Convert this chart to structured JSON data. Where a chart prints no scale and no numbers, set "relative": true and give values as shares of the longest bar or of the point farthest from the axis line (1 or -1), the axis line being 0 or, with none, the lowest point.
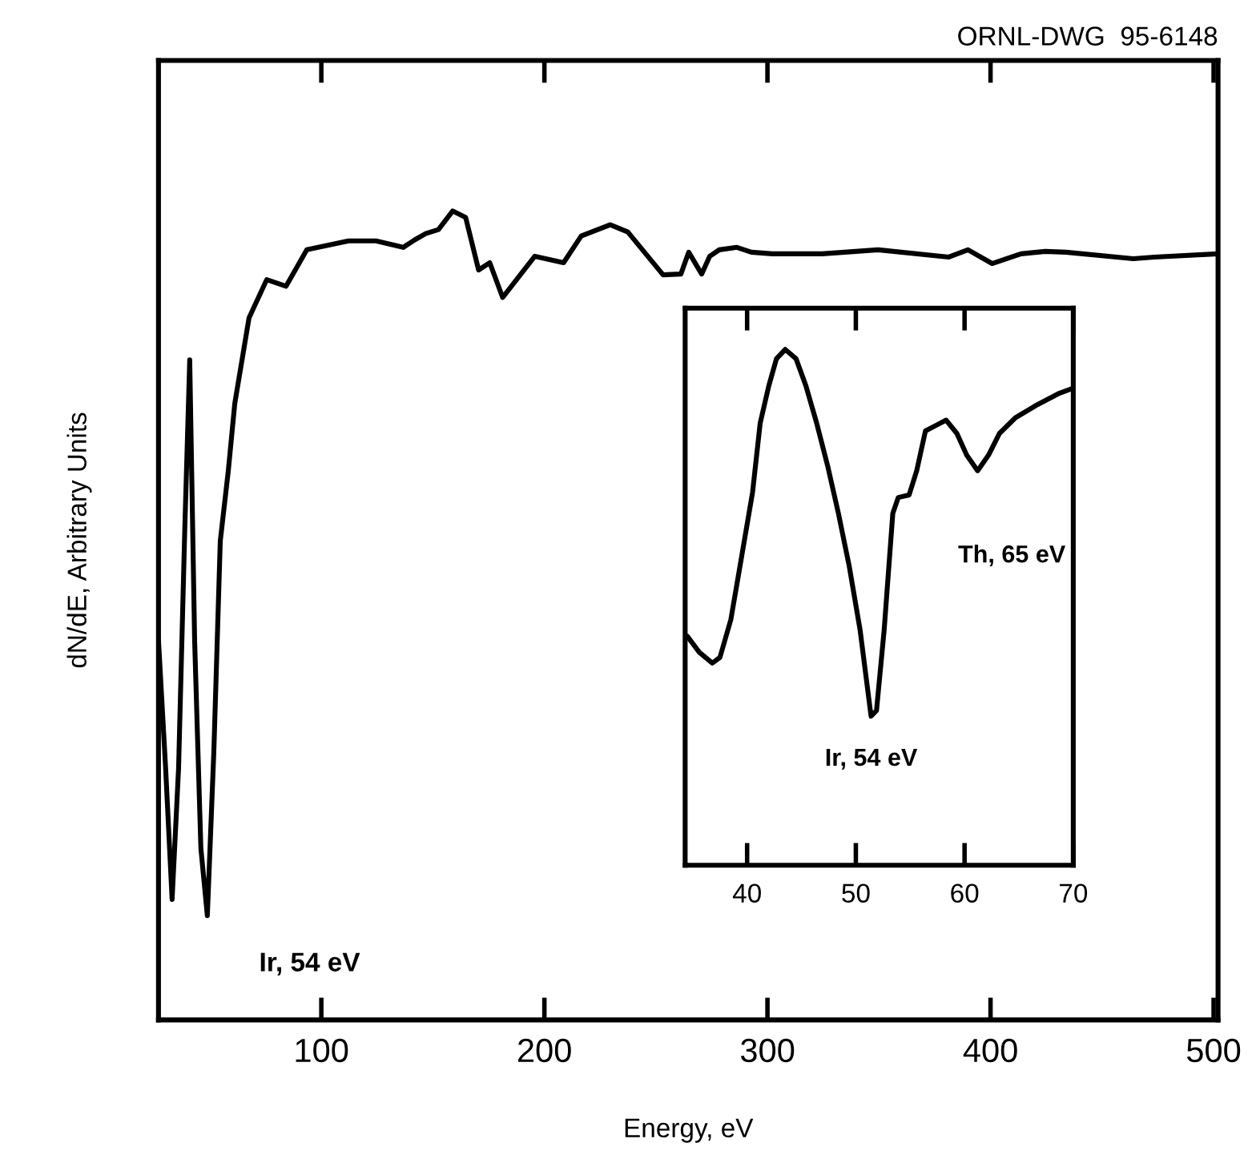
{
  "chart_data": [
    {
      "type": "line",
      "xlabel": "Energy, eV",
      "ylabel": "dN/dE, Arbitrary Units",
      "relative": true,
      "xlim": [
        27,
        502
      ],
      "xticks": [
        100,
        200,
        300,
        400,
        500
      ],
      "tick_labels": "x",
      "grid": false,
      "legend": false,
      "annotations": [
        "ORNL-DWG  95-6148",
        "Ir, 54 eV"
      ],
      "series": [
        {
          "color": "#000000",
          "x": [
            27.0,
            30.2,
            33.1,
            36.0,
            38.8,
            41.0,
            43.2,
            46.0,
            48.9,
            51.8,
            54.7,
            58.3,
            61.2,
            67.6,
            75.5,
            84.2,
            93.5,
            112.2,
            124.5,
            136.7,
            141.7,
            146.8,
            152.5,
            158.9,
            164.7,
            170.5,
            175.5,
            181.3,
            195.7,
            208.6,
            216.5,
            229.5,
            237.4,
            253.2,
            261.2,
            264.7,
            270.5,
            274.1,
            278.4,
            286.3,
            292.8,
            302.2,
            324.5,
            349.6,
            381.3,
            389.9,
            400.7,
            413.7,
            424.5,
            433.8,
            464.0,
            473.4,
            502.0
          ],
          "values": [
            0.469,
            0.311,
            0.149,
            0.311,
            0.608,
            0.816,
            0.469,
            0.212,
            0.129,
            0.331,
            0.592,
            0.679,
            0.762,
            0.868,
            0.915,
            0.907,
            0.952,
            0.963,
            0.963,
            0.955,
            0.964,
            0.972,
            0.977,
            1.0,
            0.992,
            0.927,
            0.936,
            0.893,
            0.944,
            0.936,
            0.969,
            0.983,
            0.974,
            0.921,
            0.922,
            0.949,
            0.922,
            0.944,
            0.952,
            0.955,
            0.949,
            0.947,
            0.947,
            0.952,
            0.943,
            0.952,
            0.935,
            0.947,
            0.95,
            0.949,
            0.941,
            0.943,
            0.947
          ]
        }
      ]
    },
    {
      "type": "line",
      "xlim": [
        34.3,
        70
      ],
      "xticks": [
        40,
        50,
        60,
        70
      ],
      "relative": true,
      "tick_labels": "x",
      "grid": false,
      "legend": false,
      "annotations": [
        "Th, 65 eV",
        "Ir, 54 eV"
      ],
      "series": [
        {
          "color": "#000000",
          "x": [
            34.5,
            35.6,
            36.8,
            37.5,
            38.5,
            39.5,
            40.5,
            41.2,
            42.0,
            42.7,
            43.5,
            44.5,
            45.4,
            46.4,
            47.4,
            48.4,
            49.4,
            50.4,
            51.4,
            51.9,
            52.6,
            53.4,
            53.9,
            54.9,
            55.6,
            56.4,
            57.3,
            58.3,
            59.3,
            60.2,
            61.2,
            62.2,
            63.2,
            64.7,
            66.7,
            68.6,
            70.0
          ],
          "values": [
            0.444,
            0.413,
            0.392,
            0.403,
            0.476,
            0.599,
            0.723,
            0.857,
            0.93,
            0.982,
            1.0,
            0.982,
            0.93,
            0.857,
            0.775,
            0.682,
            0.579,
            0.455,
            0.289,
            0.3,
            0.455,
            0.682,
            0.713,
            0.718,
            0.765,
            0.842,
            0.852,
            0.863,
            0.837,
            0.795,
            0.765,
            0.795,
            0.837,
            0.868,
            0.893,
            0.914,
            0.925
          ]
        }
      ]
    }
  ]
}
